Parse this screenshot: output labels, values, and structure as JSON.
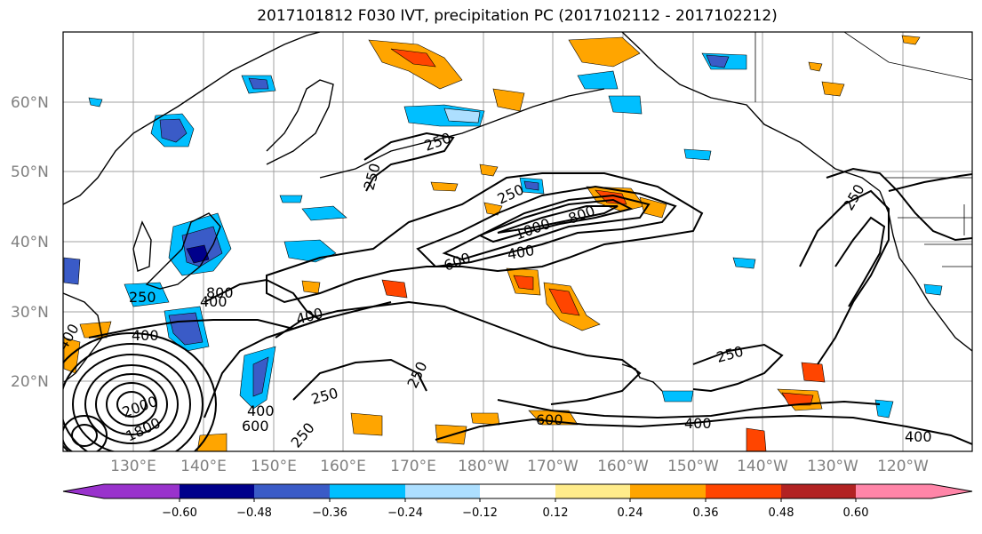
{
  "title": "2017101812 F030 IVT, precipitation PC (2017102112 - 2017102212)",
  "map": {
    "lat_labels": [
      "60°N",
      "50°N",
      "40°N",
      "30°N",
      "20°N"
    ],
    "lon_labels": [
      "130°E",
      "140°E",
      "150°E",
      "160°E",
      "170°E",
      "180°W",
      "170°W",
      "160°W",
      "150°W",
      "140°W",
      "130°W",
      "120°W"
    ],
    "contour_labels": [
      "250",
      "250",
      "250",
      "250",
      "250",
      "250",
      "250",
      "250",
      "1000",
      "800",
      "600",
      "400",
      "400",
      "400",
      "400",
      "400",
      "400",
      "400",
      "600",
      "600",
      "800",
      "2000",
      "1800",
      "250",
      "400"
    ]
  },
  "colorbar": {
    "colors": [
      "#9932CC",
      "#00008B",
      "#3A5BC7",
      "#00BFFF",
      "#ADDFFF",
      "#FFFFFF",
      "#FFEC8B",
      "#FFA500",
      "#FF4500",
      "#B22222",
      "#FF85A8"
    ],
    "tick_labels": [
      "−0.60",
      "−0.48",
      "−0.36",
      "−0.24",
      "−0.12",
      "0.12",
      "0.24",
      "0.36",
      "0.48",
      "0.60"
    ]
  }
}
